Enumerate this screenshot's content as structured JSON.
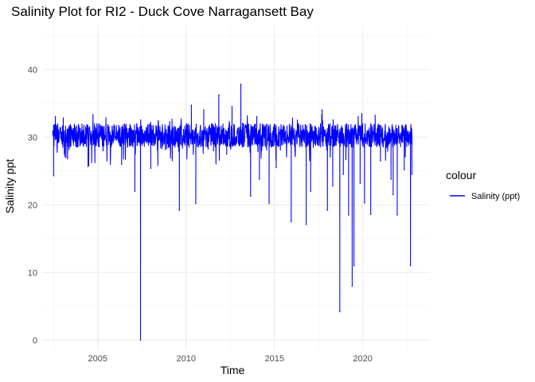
{
  "chart_data": {
    "type": "line",
    "title": "Salinity Plot for RI2 - Duck Cove Narragansett Bay",
    "xlabel": "Time",
    "ylabel": "Salinity ppt",
    "xlim": [
      2001.9,
      2023.8
    ],
    "ylim": [
      -1.5,
      46.5
    ],
    "x_ticks": [
      2005,
      2010,
      2015,
      2020
    ],
    "x_tick_labels": [
      "2005",
      "2010",
      "2015",
      "2020"
    ],
    "y_ticks": [
      0,
      10,
      20,
      30,
      40
    ],
    "y_tick_labels": [
      "0",
      "10",
      "20",
      "30",
      "40"
    ],
    "grid": true,
    "legend": {
      "title": "colour",
      "position": "right"
    },
    "series": [
      {
        "name": "Salinity (ppt)",
        "color": "#0000ff",
        "baseline": 30.5,
        "band": [
          28.5,
          32.0
        ],
        "x": [
          2002.5,
          2002.6,
          2003.2,
          2004.45,
          2005.3,
          2006.35,
          2007.1,
          2007.42,
          2008.0,
          2009.0,
          2009.62,
          2010.3,
          2010.55,
          2011.0,
          2011.55,
          2011.85,
          2012.3,
          2012.6,
          2013.1,
          2013.2,
          2013.65,
          2014.0,
          2014.15,
          2014.7,
          2015.1,
          2015.95,
          2016.8,
          2017.05,
          2017.7,
          2018.0,
          2018.3,
          2018.7,
          2018.9,
          2019.2,
          2019.4,
          2019.5,
          2019.85,
          2020.1,
          2020.45,
          2021.0,
          2021.6,
          2021.72,
          2021.95,
          2022.35,
          2022.7,
          2022.78
        ],
        "y": [
          24.3,
          33.0,
          27.0,
          25.7,
          28.0,
          26.0,
          22.0,
          0.0,
          25.4,
          28.5,
          19.2,
          34.7,
          20.2,
          34.0,
          28.0,
          36.2,
          27.5,
          34.5,
          37.8,
          32.0,
          21.3,
          33.0,
          23.8,
          20.2,
          25.5,
          17.5,
          17.1,
          22.0,
          34.0,
          19.2,
          22.8,
          4.2,
          24.5,
          18.5,
          8.0,
          11.0,
          23.2,
          20.3,
          18.6,
          26.5,
          23.8,
          21.5,
          18.5,
          25.2,
          11.0,
          24.5
        ]
      }
    ]
  }
}
